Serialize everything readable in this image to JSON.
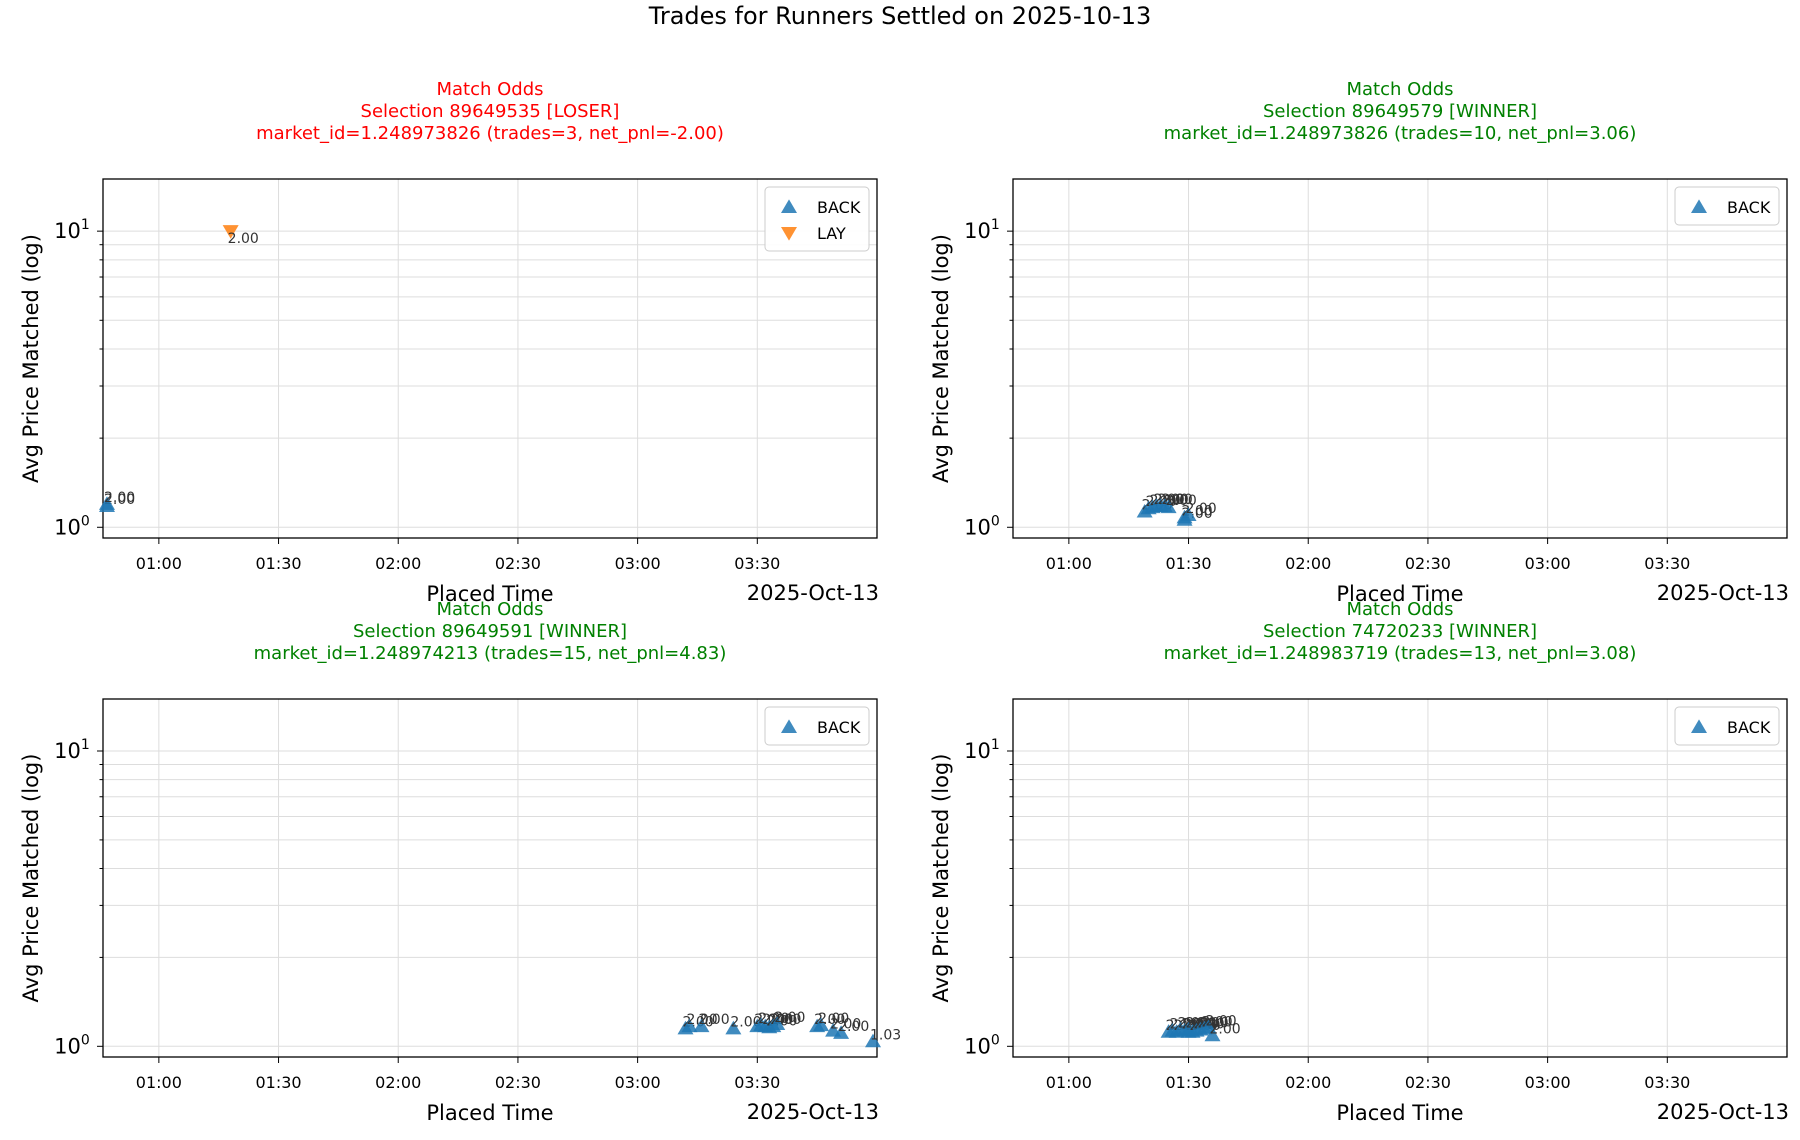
{
  "figure_title": "Trades for Runners Settled on 2025-10-13",
  "colors": {
    "back": "#1f77b4",
    "lay": "#ff7f0e",
    "loser": "#ff0000",
    "winner": "#008000",
    "grid": "#dddddd"
  },
  "chart_data": [
    {
      "type": "scatter",
      "title": [
        "Match Odds",
        "Selection 89649535 [LOSER]",
        "market_id=1.248973826 (trades=3, net_pnl=-2.00)"
      ],
      "status": "loser",
      "xlabel": "Placed Time",
      "ylabel": "Avg Price Matched (log)",
      "date_label": "2025-Oct-13",
      "x_ticks": [
        "01:00",
        "01:30",
        "02:00",
        "02:30",
        "03:00",
        "03:30"
      ],
      "y_ticks": [
        "10^0",
        "10^1"
      ],
      "xlim": [
        "00:46",
        "04:00"
      ],
      "ylim": [
        0.92,
        15
      ],
      "y_scale": "log",
      "grid": true,
      "legend": "top-right",
      "legend_entries": [
        "BACK",
        "LAY"
      ],
      "series": [
        {
          "name": "BACK",
          "marker": "triangle-up",
          "points": [
            {
              "t": "00:47",
              "y": 1.18,
              "label": "2.00"
            },
            {
              "t": "00:47",
              "y": 1.2,
              "label": "2.00"
            }
          ]
        },
        {
          "name": "LAY",
          "marker": "triangle-down",
          "points": [
            {
              "t": "01:18",
              "y": 10.0,
              "label": "2.00"
            }
          ]
        }
      ]
    },
    {
      "type": "scatter",
      "title": [
        "Match Odds",
        "Selection 89649579 [WINNER]",
        "market_id=1.248973826 (trades=10, net_pnl=3.06)"
      ],
      "status": "winner",
      "xlabel": "Placed Time",
      "ylabel": "Avg Price Matched (log)",
      "date_label": "2025-Oct-13",
      "x_ticks": [
        "01:00",
        "01:30",
        "02:00",
        "02:30",
        "03:00",
        "03:30"
      ],
      "y_ticks": [
        "10^0",
        "10^1"
      ],
      "xlim": [
        "00:46",
        "04:00"
      ],
      "ylim": [
        0.92,
        15
      ],
      "y_scale": "log",
      "grid": true,
      "legend": "top-right",
      "legend_entries": [
        "BACK"
      ],
      "series": [
        {
          "name": "BACK",
          "marker": "triangle-up",
          "points": [
            {
              "t": "01:19",
              "y": 1.13,
              "label": "2.00"
            },
            {
              "t": "01:20",
              "y": 1.16,
              "label": "2.00"
            },
            {
              "t": "01:21",
              "y": 1.17,
              "label": "2.00"
            },
            {
              "t": "01:22",
              "y": 1.18,
              "label": "2.00"
            },
            {
              "t": "01:23",
              "y": 1.18,
              "label": "2.00"
            },
            {
              "t": "01:24",
              "y": 1.18,
              "label": "2.00"
            },
            {
              "t": "01:25",
              "y": 1.17,
              "label": "2.00"
            },
            {
              "t": "01:29",
              "y": 1.06,
              "label": "2.00"
            },
            {
              "t": "01:29",
              "y": 1.08,
              "label": "2.00"
            },
            {
              "t": "01:30",
              "y": 1.1,
              "label": "2.00"
            }
          ]
        }
      ]
    },
    {
      "type": "scatter",
      "title": [
        "Match Odds",
        "Selection 89649591 [WINNER]",
        "market_id=1.248974213 (trades=15, net_pnl=4.83)"
      ],
      "status": "winner",
      "xlabel": "Placed Time",
      "ylabel": "Avg Price Matched (log)",
      "date_label": "2025-Oct-13",
      "x_ticks": [
        "01:00",
        "01:30",
        "02:00",
        "02:30",
        "03:00",
        "03:30"
      ],
      "y_ticks": [
        "10^0",
        "10^1"
      ],
      "xlim": [
        "00:46",
        "04:00"
      ],
      "ylim": [
        0.92,
        15
      ],
      "y_scale": "log",
      "grid": true,
      "legend": "top-right",
      "legend_entries": [
        "BACK"
      ],
      "series": [
        {
          "name": "BACK",
          "marker": "triangle-up",
          "points": [
            {
              "t": "03:12",
              "y": 1.15,
              "label": "2.00"
            },
            {
              "t": "03:13",
              "y": 1.17,
              "label": "2.00"
            },
            {
              "t": "03:16",
              "y": 1.17,
              "label": "2.00"
            },
            {
              "t": "03:24",
              "y": 1.15,
              "label": "2.00"
            },
            {
              "t": "03:30",
              "y": 1.17,
              "label": "2.00"
            },
            {
              "t": "03:31",
              "y": 1.18,
              "label": "2.00"
            },
            {
              "t": "03:32",
              "y": 1.17,
              "label": "2.00"
            },
            {
              "t": "03:33",
              "y": 1.16,
              "label": "2.00"
            },
            {
              "t": "03:34",
              "y": 1.17,
              "label": "2.00"
            },
            {
              "t": "03:35",
              "y": 1.19,
              "label": "2.00"
            },
            {
              "t": "03:45",
              "y": 1.17,
              "label": "2.00"
            },
            {
              "t": "03:46",
              "y": 1.18,
              "label": "2.00"
            },
            {
              "t": "03:49",
              "y": 1.13,
              "label": "2.00"
            },
            {
              "t": "03:51",
              "y": 1.11,
              "label": "2.00"
            },
            {
              "t": "03:59",
              "y": 1.04,
              "label": "1.03"
            }
          ]
        }
      ]
    },
    {
      "type": "scatter",
      "title": [
        "Match Odds",
        "Selection 74720233 [WINNER]",
        "market_id=1.248983719 (trades=13, net_pnl=3.08)"
      ],
      "status": "winner",
      "xlabel": "Placed Time",
      "ylabel": "Avg Price Matched (log)",
      "date_label": "2025-Oct-13",
      "x_ticks": [
        "01:00",
        "01:30",
        "02:00",
        "02:30",
        "03:00",
        "03:30"
      ],
      "y_ticks": [
        "10^0",
        "10^1"
      ],
      "xlim": [
        "00:46",
        "04:00"
      ],
      "ylim": [
        0.92,
        15
      ],
      "y_scale": "log",
      "grid": true,
      "legend": "top-right",
      "legend_entries": [
        "BACK"
      ],
      "series": [
        {
          "name": "BACK",
          "marker": "triangle-up",
          "points": [
            {
              "t": "01:25",
              "y": 1.12,
              "label": "2.00"
            },
            {
              "t": "01:26",
              "y": 1.13,
              "label": "2.00"
            },
            {
              "t": "01:27",
              "y": 1.12,
              "label": "2.00"
            },
            {
              "t": "01:28",
              "y": 1.14,
              "label": "2.00"
            },
            {
              "t": "01:29",
              "y": 1.13,
              "label": "2.00"
            },
            {
              "t": "01:30",
              "y": 1.12,
              "label": "2.00"
            },
            {
              "t": "01:30",
              "y": 1.14,
              "label": "2.00"
            },
            {
              "t": "01:31",
              "y": 1.12,
              "label": "2.00"
            },
            {
              "t": "01:32",
              "y": 1.13,
              "label": "2.00"
            },
            {
              "t": "01:33",
              "y": 1.14,
              "label": "2.00"
            },
            {
              "t": "01:34",
              "y": 1.15,
              "label": "2.00"
            },
            {
              "t": "01:35",
              "y": 1.16,
              "label": "2.00"
            },
            {
              "t": "01:36",
              "y": 1.09,
              "label": "2.00"
            }
          ]
        }
      ]
    }
  ]
}
